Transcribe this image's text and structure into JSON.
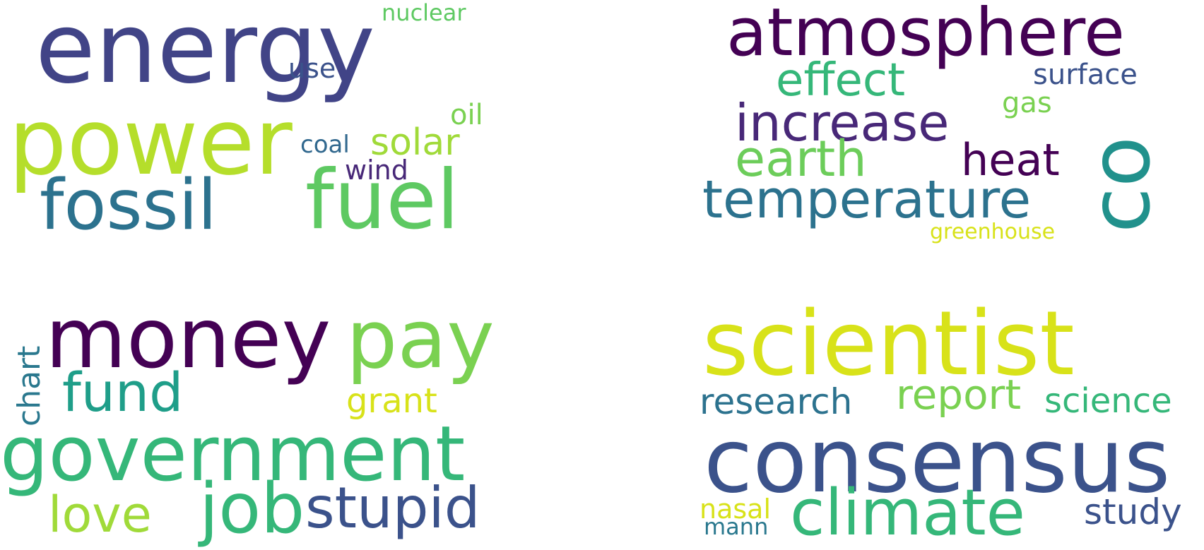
{
  "clouds": [
    {
      "words": [
        {
          "text": "energy",
          "color": "#414487"
        },
        {
          "text": "nuclear",
          "color": "#5ec962"
        },
        {
          "text": "use",
          "color": "#3b528b"
        },
        {
          "text": "power",
          "color": "#b5de2b"
        },
        {
          "text": "oil",
          "color": "#7ad151"
        },
        {
          "text": "coal",
          "color": "#31688e"
        },
        {
          "text": "solar",
          "color": "#a0da39"
        },
        {
          "text": "wind",
          "color": "#482878"
        },
        {
          "text": "fossil",
          "color": "#2c728e"
        },
        {
          "text": "fuel",
          "color": "#5ec962"
        }
      ]
    },
    {
      "words": [
        {
          "text": "atmosphere",
          "color": "#440154"
        },
        {
          "text": "effect",
          "color": "#35b779"
        },
        {
          "text": "surface",
          "color": "#3b528b"
        },
        {
          "text": "increase",
          "color": "#482878"
        },
        {
          "text": "gas",
          "color": "#7ad151"
        },
        {
          "text": "co",
          "color": "#21918c"
        },
        {
          "text": "earth",
          "color": "#6ccd5a"
        },
        {
          "text": "heat",
          "color": "#440154"
        },
        {
          "text": "temperature",
          "color": "#2c728e"
        },
        {
          "text": "greenhouse",
          "color": "#d8e219"
        }
      ]
    },
    {
      "words": [
        {
          "text": "money",
          "color": "#440154"
        },
        {
          "text": "pay",
          "color": "#7ad151"
        },
        {
          "text": "chart",
          "color": "#2a788e"
        },
        {
          "text": "fund",
          "color": "#1f9e89"
        },
        {
          "text": "grant",
          "color": "#d8e219"
        },
        {
          "text": "government",
          "color": "#35b779"
        },
        {
          "text": "love",
          "color": "#a0da39"
        },
        {
          "text": "job",
          "color": "#35b779"
        },
        {
          "text": "stupid",
          "color": "#3b528b"
        }
      ]
    },
    {
      "words": [
        {
          "text": "scientist",
          "color": "#d8e219"
        },
        {
          "text": "research",
          "color": "#2c728e"
        },
        {
          "text": "report",
          "color": "#7ad151"
        },
        {
          "text": "science",
          "color": "#35b779"
        },
        {
          "text": "consensus",
          "color": "#3b528b"
        },
        {
          "text": "nasal",
          "color": "#d8e219"
        },
        {
          "text": "mann",
          "color": "#2a788e"
        },
        {
          "text": "climate",
          "color": "#35b779"
        },
        {
          "text": "study",
          "color": "#3b528b"
        }
      ]
    }
  ]
}
